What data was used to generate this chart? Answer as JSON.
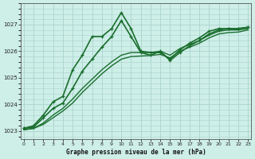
{
  "bg_color": "#ceeee8",
  "grid_color": "#aad4cc",
  "line_color": "#1a6e2e",
  "title": "Graphe pression niveau de la mer (hPa)",
  "ylim": [
    1022.7,
    1027.8
  ],
  "xlim": [
    -0.3,
    23.3
  ],
  "yticks": [
    1023,
    1024,
    1025,
    1026,
    1027
  ],
  "xticks": [
    0,
    1,
    2,
    3,
    4,
    5,
    6,
    7,
    8,
    9,
    10,
    11,
    12,
    13,
    14,
    15,
    16,
    17,
    18,
    19,
    20,
    21,
    22,
    23
  ],
  "series": [
    {
      "x": [
        0,
        1,
        2,
        3,
        4,
        5,
        6,
        7,
        8,
        9,
        10,
        11,
        12,
        13,
        14,
        15,
        16,
        17,
        18,
        19,
        20,
        21,
        22,
        23
      ],
      "y": [
        1023.1,
        1023.2,
        1023.6,
        1024.1,
        1024.3,
        1025.3,
        1025.85,
        1026.55,
        1026.55,
        1026.85,
        1027.45,
        1026.85,
        1026.0,
        1025.95,
        1025.95,
        1025.7,
        1026.05,
        1026.3,
        1026.5,
        1026.75,
        1026.85,
        1026.85,
        1026.85,
        1026.9
      ],
      "marker": "+",
      "lw": 1.2
    },
    {
      "x": [
        0,
        1,
        2,
        3,
        4,
        5,
        6,
        7,
        8,
        9,
        10,
        11,
        12,
        13,
        14,
        15,
        16,
        17,
        18,
        19,
        20,
        21,
        22,
        23
      ],
      "y": [
        1023.1,
        1023.15,
        1023.5,
        1023.85,
        1024.05,
        1024.6,
        1025.25,
        1025.7,
        1026.15,
        1026.55,
        1027.15,
        1026.55,
        1025.95,
        1025.85,
        1026.0,
        1025.65,
        1025.95,
        1026.2,
        1026.4,
        1026.65,
        1026.8,
        1026.85,
        1026.85,
        1026.9
      ],
      "marker": "+",
      "lw": 1.2
    },
    {
      "x": [
        0,
        1,
        2,
        3,
        4,
        5,
        6,
        7,
        8,
        9,
        10,
        11,
        12,
        13,
        14,
        15,
        16,
        17,
        18,
        19,
        20,
        21,
        22,
        23
      ],
      "y": [
        1023.05,
        1023.1,
        1023.3,
        1023.6,
        1023.85,
        1024.2,
        1024.6,
        1024.95,
        1025.3,
        1025.6,
        1025.85,
        1025.95,
        1025.95,
        1025.95,
        1026.0,
        1025.85,
        1026.1,
        1026.25,
        1026.4,
        1026.6,
        1026.75,
        1026.8,
        1026.8,
        1026.85
      ],
      "marker": null,
      "lw": 1.0
    },
    {
      "x": [
        0,
        1,
        2,
        3,
        4,
        5,
        6,
        7,
        8,
        9,
        10,
        11,
        12,
        13,
        14,
        15,
        16,
        17,
        18,
        19,
        20,
        21,
        22,
        23
      ],
      "y": [
        1023.05,
        1023.1,
        1023.25,
        1023.5,
        1023.75,
        1024.05,
        1024.45,
        1024.8,
        1025.15,
        1025.45,
        1025.7,
        1025.8,
        1025.82,
        1025.84,
        1025.88,
        1025.75,
        1026.0,
        1026.15,
        1026.3,
        1026.5,
        1026.65,
        1026.7,
        1026.72,
        1026.8
      ],
      "marker": null,
      "lw": 1.0
    }
  ]
}
